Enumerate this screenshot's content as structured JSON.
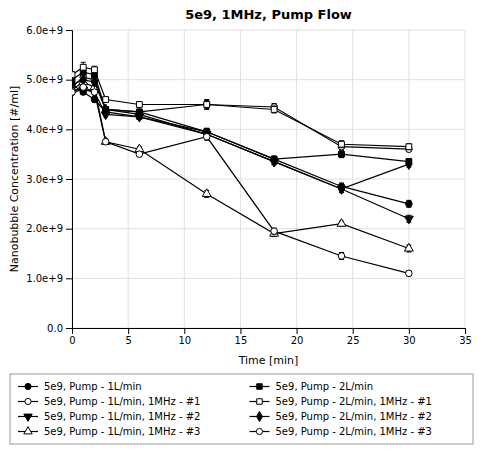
{
  "chart_data": {
    "type": "line",
    "title": "5e9, 1MHz, Pump Flow",
    "x_label": "Time [min]",
    "y_label": "Nanobubble Concentration [#/ml]",
    "x": [
      0,
      1,
      2,
      3,
      6,
      12,
      18,
      24,
      30
    ],
    "xlim": [
      0,
      35
    ],
    "ylim": [
      0,
      6000000000.0
    ],
    "xticks": [
      0,
      5,
      10,
      15,
      20,
      25,
      30,
      35
    ],
    "yticks": [
      {
        "value": 0.0,
        "label": "0.0"
      },
      {
        "value": 1000000000.0,
        "label": "1.0e+9"
      },
      {
        "value": 2000000000.0,
        "label": "2.0e+9"
      },
      {
        "value": 3000000000.0,
        "label": "3.0e+9"
      },
      {
        "value": 4000000000.0,
        "label": "4.0e+9"
      },
      {
        "value": 5000000000.0,
        "label": "5.0e+9"
      },
      {
        "value": 6000000000.0,
        "label": "6.0e+9"
      }
    ],
    "grid": true,
    "legend": "bottom",
    "series": [
      {
        "name": "5e9, Pump - 1L/min",
        "color": "black",
        "marker": "circle",
        "line_style": "solid",
        "values": [
          4900000000.0,
          4750000000.0,
          4600000000.0,
          4350000000.0,
          4250000000.0,
          3950000000.0,
          3400000000.0,
          2850000000.0,
          2500000000.0
        ],
        "errors": [
          50000000.0,
          50000000.0,
          50000000.0,
          50000000.0,
          50000000.0,
          70000000.0,
          50000000.0,
          70000000.0,
          70000000.0
        ]
      },
      {
        "name": "5e9, Pump - 1L/min, 1MHz - #1",
        "color": "black",
        "marker": "circle-open",
        "line_style": "solid",
        "values": [
          4850000000.0,
          5050000000.0,
          5000000000.0,
          4400000000.0,
          4350000000.0,
          4500000000.0,
          4450000000.0,
          3650000000.0,
          3600000000.0
        ],
        "errors": [
          50000000.0,
          100000000.0,
          50000000.0,
          50000000.0,
          50000000.0,
          100000000.0,
          70000000.0,
          50000000.0,
          50000000.0
        ]
      },
      {
        "name": "5e9, Pump - 1L/min, 1MHz - #2",
        "color": "black",
        "marker": "triangle-down",
        "line_style": "solid",
        "values": [
          4750000000.0,
          4800000000.0,
          4750000000.0,
          4300000000.0,
          4250000000.0,
          3900000000.0,
          3350000000.0,
          2800000000.0,
          2200000000.0
        ],
        "errors": [
          50000000.0,
          50000000.0,
          50000000.0,
          50000000.0,
          50000000.0,
          70000000.0,
          60000000.0,
          70000000.0,
          70000000.0
        ]
      },
      {
        "name": "5e9, Pump - 1L/min, 1MHz - #3",
        "color": "black",
        "marker": "triangle-up-open",
        "line_style": "solid",
        "values": [
          4800000000.0,
          4950000000.0,
          4850000000.0,
          3750000000.0,
          3600000000.0,
          2700000000.0,
          1900000000.0,
          2100000000.0,
          1600000000.0
        ],
        "errors": [
          50000000.0,
          50000000.0,
          50000000.0,
          50000000.0,
          50000000.0,
          70000000.0,
          60000000.0,
          50000000.0,
          70000000.0
        ]
      },
      {
        "name": "5e9, Pump - 2L/min",
        "color": "black",
        "marker": "square",
        "line_style": "solid",
        "values": [
          5000000000.0,
          5150000000.0,
          5100000000.0,
          4400000000.0,
          4350000000.0,
          3950000000.0,
          3400000000.0,
          3500000000.0,
          3350000000.0
        ],
        "errors": [
          50000000.0,
          100000000.0,
          70000000.0,
          50000000.0,
          50000000.0,
          70000000.0,
          60000000.0,
          70000000.0,
          60000000.0
        ]
      },
      {
        "name": "5e9, Pump - 2L/min, 1MHz - #1",
        "color": "black",
        "marker": "square-open",
        "line_style": "solid",
        "values": [
          5100000000.0,
          5250000000.0,
          5200000000.0,
          4600000000.0,
          4500000000.0,
          4500000000.0,
          4400000000.0,
          3700000000.0,
          3650000000.0
        ],
        "errors": [
          50000000.0,
          100000000.0,
          70000000.0,
          50000000.0,
          50000000.0,
          80000000.0,
          70000000.0,
          70000000.0,
          60000000.0
        ]
      },
      {
        "name": "5e9, Pump - 2L/min, 1MHz - #2",
        "color": "black",
        "marker": "diamond",
        "line_style": "solid",
        "values": [
          4900000000.0,
          5000000000.0,
          4950000000.0,
          4400000000.0,
          4300000000.0,
          3900000000.0,
          3350000000.0,
          2800000000.0,
          3300000000.0
        ],
        "errors": [
          50000000.0,
          50000000.0,
          50000000.0,
          50000000.0,
          50000000.0,
          70000000.0,
          60000000.0,
          70000000.0,
          60000000.0
        ]
      },
      {
        "name": "5e9, Pump - 2L/min, 1MHz - #3",
        "color": "black",
        "marker": "circle-open",
        "line_style": "solid",
        "values": [
          4750000000.0,
          4850000000.0,
          4750000000.0,
          3750000000.0,
          3500000000.0,
          3850000000.0,
          1950000000.0,
          1450000000.0,
          1100000000.0
        ],
        "errors": [
          50000000.0,
          50000000.0,
          50000000.0,
          50000000.0,
          50000000.0,
          70000000.0,
          60000000.0,
          70000000.0,
          50000000.0
        ]
      }
    ]
  }
}
